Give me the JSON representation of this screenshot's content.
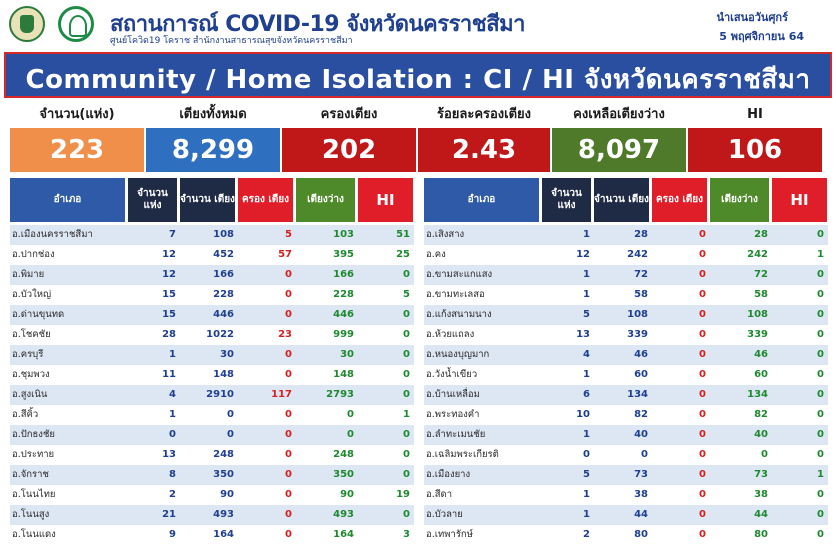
{
  "header": {
    "title": "สถานการณ์ COVID-19 จังหวัดนครราชสีมา",
    "subtitle": "ศูนย์โควิด19 โคราช  สำนักงานสาธารณสุขจังหวัดนครราชสีมา",
    "date_line1": "นำเสนอวันศุกร์",
    "date_line2": "5 พฤศจิกายน 64"
  },
  "banner": {
    "title": "Community / Home Isolation : CI / HI จังหวัดนครราชสีมา"
  },
  "summary": [
    {
      "label": "จำนวน(แห่ง)",
      "value": "223",
      "color": "#ef8f4a"
    },
    {
      "label": "เตียงทั้งหมด",
      "value": "8,299",
      "color": "#2f6fbf"
    },
    {
      "label": "ครองเตียง",
      "value": "202",
      "color": "#c01818"
    },
    {
      "label": "ร้อยละครองเตียง",
      "value": "2.43",
      "color": "#c01818"
    },
    {
      "label": "คงเหลือเตียงว่าง",
      "value": "8,097",
      "color": "#4f7a2a"
    },
    {
      "label": "HI",
      "value": "106",
      "color": "#c01818"
    }
  ],
  "table_headers": {
    "district": "อำเภอ",
    "count": "จำนวน แห่ง",
    "beds": "จำนวน เตียง",
    "occupied": "ครอง เตียง",
    "available": "เตียงว่าง",
    "hi": "HI"
  },
  "colors": {
    "header_dark": "#1f2a44",
    "header_blue": "#2f5aa8",
    "header_red": "#e01e2a",
    "header_green": "#4f8a2a",
    "row_alt": "#dde6f3",
    "text_blue": "#1f3f8f",
    "text_red": "#d6201f",
    "text_green": "#1e8a2f"
  },
  "left_rows": [
    {
      "name": "อ.เมืองนครราชสีมา",
      "count": "7",
      "beds": "108",
      "occupied": "5",
      "available": "103",
      "hi": "51"
    },
    {
      "name": "อ.ปากช่อง",
      "count": "12",
      "beds": "452",
      "occupied": "57",
      "available": "395",
      "hi": "25"
    },
    {
      "name": "อ.พิมาย",
      "count": "12",
      "beds": "166",
      "occupied": "0",
      "available": "166",
      "hi": "0"
    },
    {
      "name": "อ.บัวใหญ่",
      "count": "15",
      "beds": "228",
      "occupied": "0",
      "available": "228",
      "hi": "5"
    },
    {
      "name": "อ.ด่านขุนทด",
      "count": "15",
      "beds": "446",
      "occupied": "0",
      "available": "446",
      "hi": "0"
    },
    {
      "name": "อ.โชคชัย",
      "count": "28",
      "beds": "1022",
      "occupied": "23",
      "available": "999",
      "hi": "0"
    },
    {
      "name": "อ.ครบุรี",
      "count": "1",
      "beds": "30",
      "occupied": "0",
      "available": "30",
      "hi": "0"
    },
    {
      "name": "อ.ชุมพวง",
      "count": "11",
      "beds": "148",
      "occupied": "0",
      "available": "148",
      "hi": "0"
    },
    {
      "name": "อ.สูงเนิน",
      "count": "4",
      "beds": "2910",
      "occupied": "117",
      "available": "2793",
      "hi": "0"
    },
    {
      "name": "อ.สีคิ้ว",
      "count": "1",
      "beds": "0",
      "occupied": "0",
      "available": "0",
      "hi": "1"
    },
    {
      "name": "อ.ปักธงชัย",
      "count": "0",
      "beds": "0",
      "occupied": "0",
      "available": "0",
      "hi": "0"
    },
    {
      "name": "อ.ประทาย",
      "count": "13",
      "beds": "248",
      "occupied": "0",
      "available": "248",
      "hi": "0"
    },
    {
      "name": "อ.จักราช",
      "count": "8",
      "beds": "350",
      "occupied": "0",
      "available": "350",
      "hi": "0"
    },
    {
      "name": "อ.โนนไทย",
      "count": "2",
      "beds": "90",
      "occupied": "0",
      "available": "90",
      "hi": "19"
    },
    {
      "name": "อ.โนนสูง",
      "count": "21",
      "beds": "493",
      "occupied": "0",
      "available": "493",
      "hi": "0"
    },
    {
      "name": "อ.โนนแดง",
      "count": "9",
      "beds": "164",
      "occupied": "0",
      "available": "164",
      "hi": "3"
    }
  ],
  "right_rows": [
    {
      "name": "อ.เสิงสาง",
      "count": "1",
      "beds": "28",
      "occupied": "0",
      "available": "28",
      "hi": "0"
    },
    {
      "name": "อ.คง",
      "count": "12",
      "beds": "242",
      "occupied": "0",
      "available": "242",
      "hi": "1"
    },
    {
      "name": "อ.ขามสะแกแสง",
      "count": "1",
      "beds": "72",
      "occupied": "0",
      "available": "72",
      "hi": "0"
    },
    {
      "name": "อ.ขามทะเลสอ",
      "count": "1",
      "beds": "58",
      "occupied": "0",
      "available": "58",
      "hi": "0"
    },
    {
      "name": "อ.แก้งสนามนาง",
      "count": "5",
      "beds": "108",
      "occupied": "0",
      "available": "108",
      "hi": "0"
    },
    {
      "name": "อ.ห้วยแถลง",
      "count": "13",
      "beds": "339",
      "occupied": "0",
      "available": "339",
      "hi": "0"
    },
    {
      "name": "อ.หนองบุญมาก",
      "count": "4",
      "beds": "46",
      "occupied": "0",
      "available": "46",
      "hi": "0"
    },
    {
      "name": "อ.วังน้ำเขียว",
      "count": "1",
      "beds": "60",
      "occupied": "0",
      "available": "60",
      "hi": "0"
    },
    {
      "name": "อ.บ้านเหลื่อม",
      "count": "6",
      "beds": "134",
      "occupied": "0",
      "available": "134",
      "hi": "0"
    },
    {
      "name": "อ.พระทองคำ",
      "count": "10",
      "beds": "82",
      "occupied": "0",
      "available": "82",
      "hi": "0"
    },
    {
      "name": "อ.ลำทะเมนชัย",
      "count": "1",
      "beds": "40",
      "occupied": "0",
      "available": "40",
      "hi": "0"
    },
    {
      "name": "อ.เฉลิมพระเกียรติ",
      "count": "0",
      "beds": "0",
      "occupied": "0",
      "available": "0",
      "hi": "0"
    },
    {
      "name": "อ.เมืองยาง",
      "count": "5",
      "beds": "73",
      "occupied": "0",
      "available": "73",
      "hi": "1"
    },
    {
      "name": "อ.สีดา",
      "count": "1",
      "beds": "38",
      "occupied": "0",
      "available": "38",
      "hi": "0"
    },
    {
      "name": "อ.บัวลาย",
      "count": "1",
      "beds": "44",
      "occupied": "0",
      "available": "44",
      "hi": "0"
    },
    {
      "name": "อ.เทพารักษ์",
      "count": "2",
      "beds": "80",
      "occupied": "0",
      "available": "80",
      "hi": "0"
    }
  ]
}
